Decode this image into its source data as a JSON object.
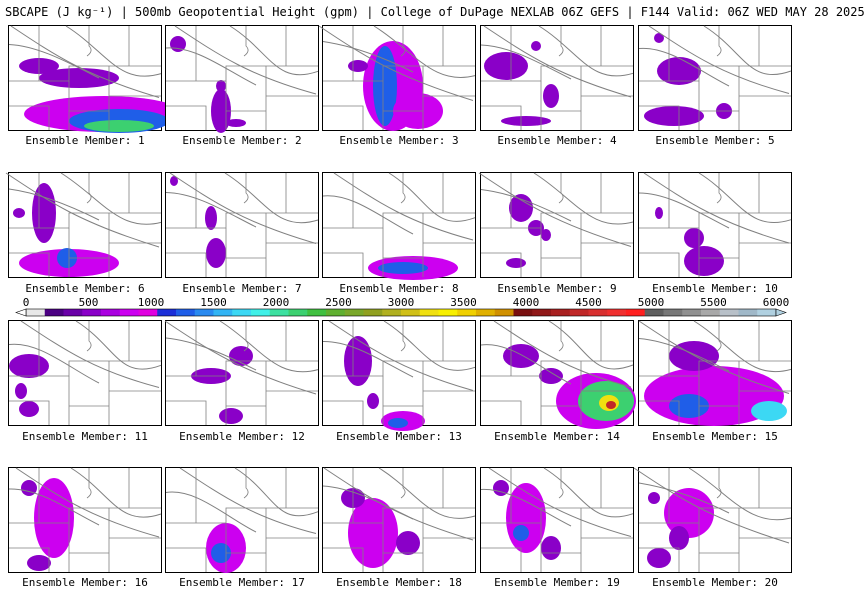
{
  "header": {
    "title": "SBCAPE (J kg⁻¹) | 500mb Geopotential Height (gpm) | College of DuPage NEXLAB 06Z GEFS | F144 Valid: 06Z WED MAY 28 2025"
  },
  "colorbar": {
    "ticks": [
      "0",
      "500",
      "1000",
      "1500",
      "2000",
      "2500",
      "3000",
      "3500",
      "4000",
      "4500",
      "5000",
      "5500",
      "6000"
    ],
    "colors": [
      "#e8e8e8",
      "#4b0082",
      "#6a00a8",
      "#8a00c8",
      "#aa00e0",
      "#cc00f0",
      "#e000e0",
      "#1c2fd8",
      "#1f5ee8",
      "#2a8af0",
      "#32b4f4",
      "#3cd8f4",
      "#40f0e8",
      "#3ce0a0",
      "#3cd070",
      "#40c040",
      "#60b030",
      "#7aa82a",
      "#90a020",
      "#b0b020",
      "#d0c018",
      "#f0e010",
      "#f8f000",
      "#f0d000",
      "#e0b000",
      "#d09000",
      "#7a1010",
      "#901818",
      "#a82020",
      "#c02828",
      "#d83030",
      "#f03030",
      "#ff2020",
      "#606060",
      "#787878",
      "#909090",
      "#a8a8a8",
      "#b8c0c8",
      "#a0b8c8",
      "#b0d0e0"
    ]
  },
  "members": [
    {
      "label": "Ensemble Member: 1"
    },
    {
      "label": "Ensemble Member: 2"
    },
    {
      "label": "Ensemble Member: 3"
    },
    {
      "label": "Ensemble Member: 4"
    },
    {
      "label": "Ensemble Member: 5"
    },
    {
      "label": "Ensemble Member: 6"
    },
    {
      "label": "Ensemble Member: 7"
    },
    {
      "label": "Ensemble Member: 8"
    },
    {
      "label": "Ensemble Member: 9"
    },
    {
      "label": "Ensemble Member: 10"
    },
    {
      "label": "Ensemble Member: 11"
    },
    {
      "label": "Ensemble Member: 12"
    },
    {
      "label": "Ensemble Member: 13"
    },
    {
      "label": "Ensemble Member: 14"
    },
    {
      "label": "Ensemble Member: 15"
    },
    {
      "label": "Ensemble Member: 16"
    },
    {
      "label": "Ensemble Member: 17"
    },
    {
      "label": "Ensemble Member: 18"
    },
    {
      "label": "Ensemble Member: 19"
    },
    {
      "label": "Ensemble Member: 20"
    }
  ],
  "palette": {
    "cape_low": "#8a00c8",
    "cape_mid": "#cc00f0",
    "cape_blue": "#1f5ee8",
    "cape_cyan": "#3cd8f4",
    "cape_green": "#3cd070",
    "cape_yellow": "#f0e010",
    "cape_red": "#c02828",
    "border": "#808080",
    "height_contour": "#808080"
  }
}
